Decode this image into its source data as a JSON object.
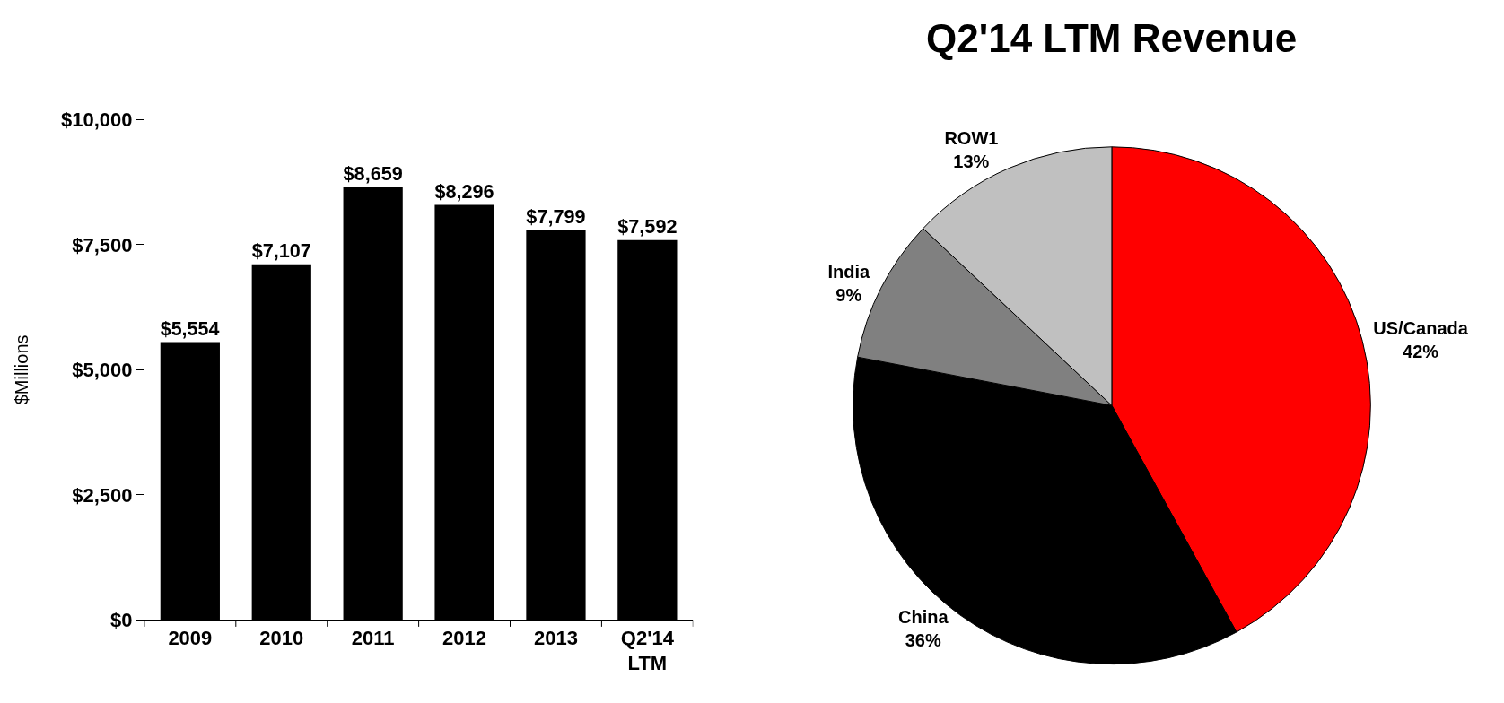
{
  "chart_data": [
    {
      "type": "bar",
      "ylabel": "$Millions",
      "categories": [
        "2009",
        "2010",
        "2011",
        "2012",
        "2013",
        "Q2'14\nLTM"
      ],
      "values": [
        5554,
        7107,
        8659,
        8296,
        7799,
        7592
      ],
      "value_labels": [
        "$5,554",
        "$7,107",
        "$8,659",
        "$8,296",
        "$7,799",
        "$7,592"
      ],
      "color": "#000000",
      "ylim": [
        0,
        10000
      ],
      "yticks": [
        {
          "value": 0,
          "label": "$0"
        },
        {
          "value": 2500,
          "label": "$2,500"
        },
        {
          "value": 5000,
          "label": "$5,000"
        },
        {
          "value": 7500,
          "label": "$7,500"
        },
        {
          "value": 10000,
          "label": "$10,000"
        }
      ]
    },
    {
      "type": "pie",
      "title": "Q2'14 LTM Revenue",
      "categories": [
        "US/Canada",
        "China",
        "India",
        "ROW1"
      ],
      "values": [
        42,
        36,
        9,
        13
      ],
      "value_labels": [
        "42%",
        "36%",
        "9%",
        "13%"
      ],
      "colors": [
        "#ff0000",
        "#000000",
        "#808080",
        "#c0c0c0"
      ]
    }
  ]
}
